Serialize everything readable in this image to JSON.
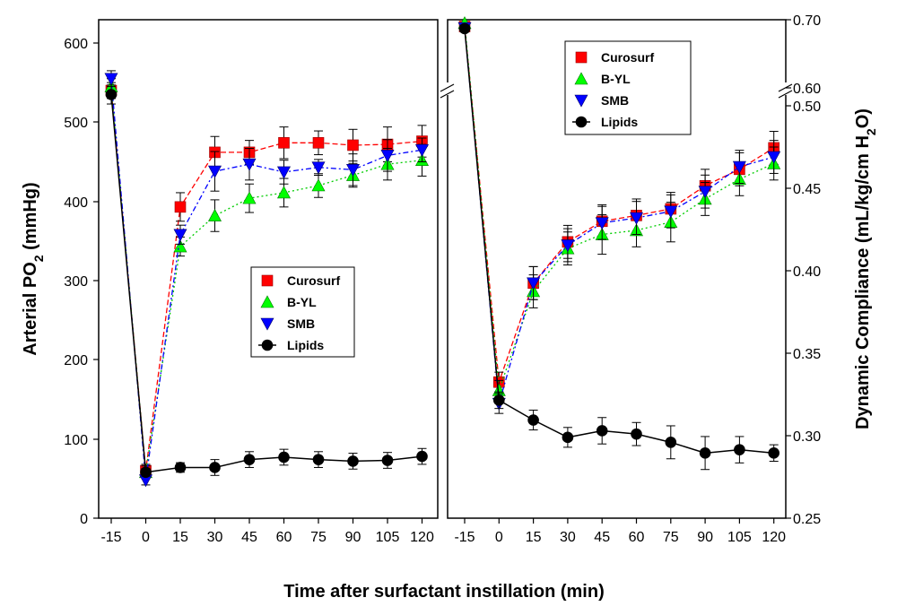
{
  "chart_data": {
    "type": "line",
    "shared_xlabel": "Time after surfactant instillation (min)",
    "panels": [
      {
        "id": "po2",
        "ylabel": "Arterial PO",
        "ylabel_sub": "2",
        "ylabel_suffix": " (mmHg)",
        "ylim": [
          0,
          640
        ],
        "yticks": [
          "0",
          "100",
          "200",
          "300",
          "400",
          "500",
          "600"
        ],
        "x": [
          "-15",
          "0",
          "15",
          "30",
          "45",
          "60",
          "75",
          "90",
          "105",
          "120"
        ],
        "legend_position": "center-right",
        "series": [
          {
            "name": "Curosurf",
            "color": "#ff0000",
            "marker": "square",
            "line": "dash",
            "values": [
              540,
              60,
              393,
              462,
              462,
              474,
              474,
              471,
              472,
              476
            ],
            "errors": [
              10,
              8,
              18,
              20,
              15,
              20,
              15,
              20,
              22,
              20
            ]
          },
          {
            "name": "B-YL",
            "color": "#00ff00",
            "marker": "triangle-up",
            "line": "dot",
            "values": [
              545,
              58,
              343,
              382,
              404,
              411,
              420,
              433,
              447,
              452
            ],
            "errors": [
              10,
              8,
              12,
              20,
              18,
              18,
              15,
              15,
              20,
              20
            ]
          },
          {
            "name": "SMB",
            "color": "#0000ff",
            "marker": "triangle-down",
            "line": "dashdot",
            "values": [
              555,
              48,
              358,
              438,
              447,
              437,
              443,
              440,
              458,
              465
            ],
            "errors": [
              10,
              6,
              12,
              25,
              20,
              15,
              10,
              20,
              20,
              15
            ]
          },
          {
            "name": "Lipids",
            "color": "#000000",
            "marker": "circle",
            "line": "solid",
            "values": [
              535,
              58,
              64,
              64,
              74,
              77,
              74,
              72,
              73,
              78
            ],
            "errors": [
              12,
              5,
              6,
              10,
              10,
              10,
              10,
              10,
              10,
              10
            ]
          }
        ]
      },
      {
        "id": "compliance",
        "ylabel": "Dynamic Compliance (mL/kg/cm H",
        "ylabel_sub": "2",
        "ylabel_suffix": "O)",
        "ylim_lower": [
          0.25,
          0.5
        ],
        "ylim_upper": [
          0.6,
          0.7
        ],
        "yticks": [
          "0.25",
          "0.30",
          "0.35",
          "0.40",
          "0.45",
          "0.50",
          "0.60",
          "0.70"
        ],
        "x": [
          "-15",
          "0",
          "15",
          "30",
          "45",
          "60",
          "75",
          "90",
          "105",
          "120"
        ],
        "legend_position": "top-right",
        "series": [
          {
            "name": "Curosurf",
            "color": "#ff0000",
            "marker": "square",
            "line": "dash",
            "values": [
              0.69,
              0.3325,
              0.3925,
              0.4175,
              0.43,
              0.4335,
              0.4375,
              0.4515,
              0.4615,
              0.4745
            ],
            "errors": [
              0.005,
              0.006,
              0.01,
              0.01,
              0.01,
              0.01,
              0.01,
              0.01,
              0.01,
              0.01
            ]
          },
          {
            "name": "B-YL",
            "color": "#00ff00",
            "marker": "triangle-up",
            "line": "dot",
            "values": [
              0.695,
              0.3275,
              0.3875,
              0.4135,
              0.422,
              0.4245,
              0.4295,
              0.4435,
              0.4555,
              0.465
            ],
            "errors": [
              0.005,
              0.006,
              0.01,
              0.01,
              0.012,
              0.01,
              0.012,
              0.01,
              0.01,
              0.01
            ]
          },
          {
            "name": "SMB",
            "color": "#0000ff",
            "marker": "triangle-down",
            "line": "dashdot",
            "values": [
              0.688,
              0.3195,
              0.3925,
              0.4155,
              0.429,
              0.432,
              0.436,
              0.448,
              0.463,
              0.469
            ],
            "errors": [
              0.005,
              0.006,
              0.01,
              0.01,
              0.01,
              0.01,
              0.01,
              0.01,
              0.01,
              0.01
            ]
          },
          {
            "name": "Lipids",
            "color": "#000000",
            "marker": "circle",
            "line": "solid",
            "values": [
              0.687,
              0.3215,
              0.3095,
              0.299,
              0.303,
              0.301,
              0.296,
              0.2895,
              0.2915,
              0.2895
            ],
            "errors": [
              0.005,
              0.005,
              0.006,
              0.006,
              0.008,
              0.007,
              0.01,
              0.01,
              0.008,
              0.005
            ]
          }
        ]
      }
    ]
  }
}
